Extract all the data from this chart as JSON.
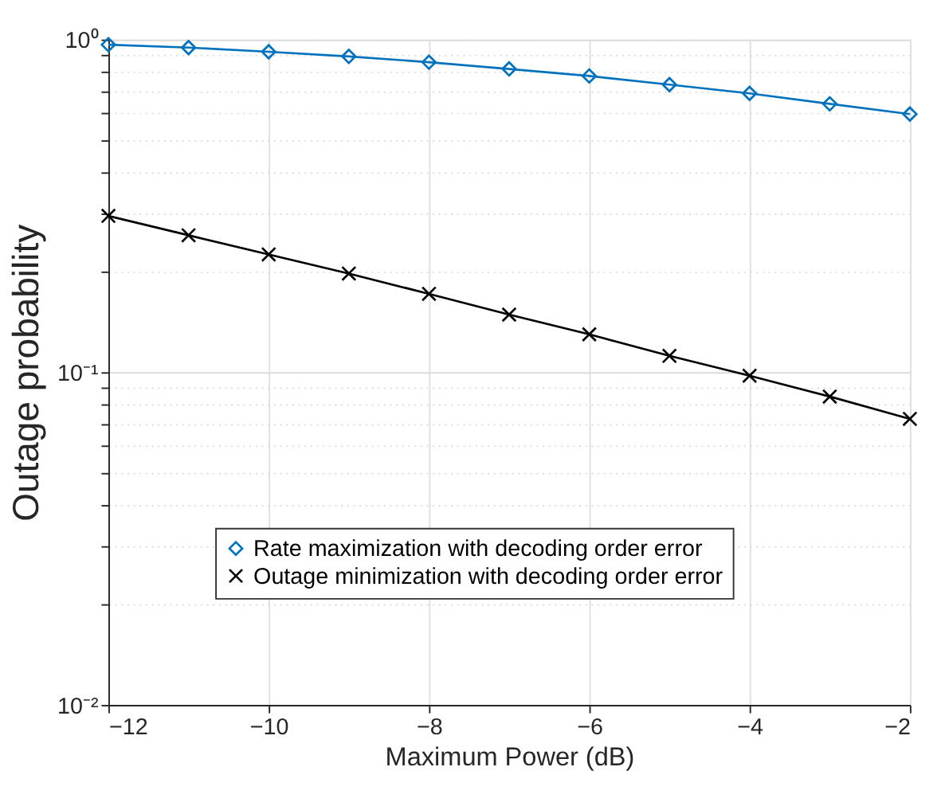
{
  "chart_data": {
    "type": "line",
    "xlabel": "Maximum Power (dB)",
    "ylabel": "Outage probability",
    "x": [
      -12,
      -11,
      -10,
      -9,
      -8,
      -7,
      -6,
      -5,
      -4,
      -3,
      -2
    ],
    "series": [
      {
        "name": "Rate maximization with decoding order error",
        "color": "#0072bd",
        "marker": "diamond",
        "values": [
          0.965,
          0.946,
          0.919,
          0.89,
          0.855,
          0.816,
          0.777,
          0.732,
          0.689,
          0.641,
          0.597
        ]
      },
      {
        "name": "Outage minimization with decoding order error",
        "color": "#000000",
        "marker": "cross",
        "values": [
          0.295,
          0.258,
          0.226,
          0.198,
          0.172,
          0.149,
          0.13,
          0.112,
          0.0976,
          0.0845,
          0.0724
        ]
      }
    ],
    "log": "y",
    "xlim": [
      -12,
      -2
    ],
    "xticks": [
      -12,
      -10,
      -8,
      -6,
      -4,
      -2
    ],
    "ylim": [
      0.01,
      1
    ],
    "yticks": [
      {
        "value": 0.01,
        "label": "10⁻²"
      },
      {
        "value": 0.02,
        "label": null
      },
      {
        "value": 0.03,
        "label": null
      },
      {
        "value": 0.04,
        "label": null
      },
      {
        "value": 0.05,
        "label": null
      },
      {
        "value": 0.06,
        "label": null
      },
      {
        "value": 0.07,
        "label": null
      },
      {
        "value": 0.08,
        "label": null
      },
      {
        "value": 0.09,
        "label": null
      },
      {
        "value": 0.1,
        "label": "10⁻¹"
      },
      {
        "value": 0.2,
        "label": null
      },
      {
        "value": 0.3,
        "label": null
      },
      {
        "value": 0.4,
        "label": null
      },
      {
        "value": 0.5,
        "label": null
      },
      {
        "value": 0.6,
        "label": null
      },
      {
        "value": 0.7,
        "label": null
      },
      {
        "value": 0.8,
        "label": null
      },
      {
        "value": 0.9,
        "label": null
      },
      {
        "value": 1,
        "label": "10⁰"
      }
    ],
    "grid": true,
    "legend": "bottom left",
    "line_style": "solid"
  }
}
